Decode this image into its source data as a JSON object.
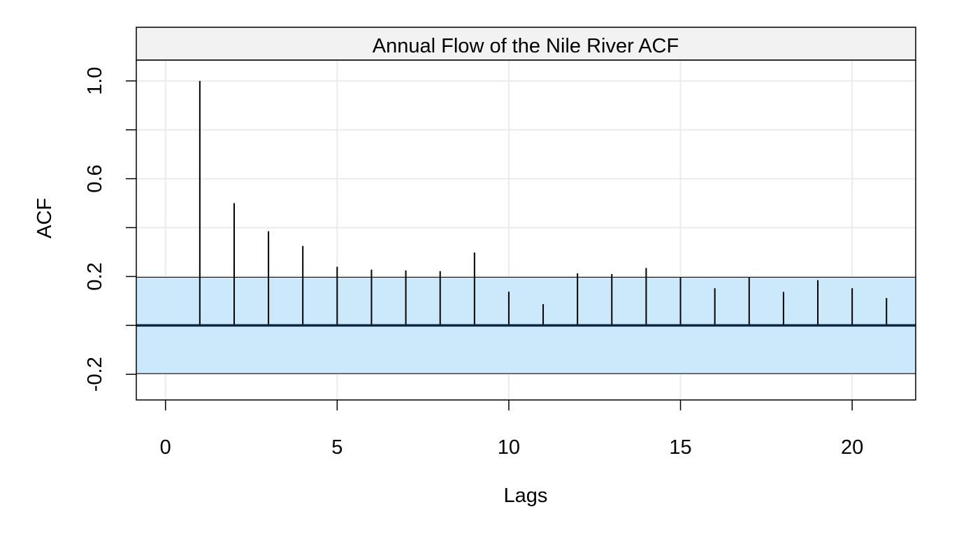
{
  "chart_data": {
    "type": "bar",
    "title": "Annual Flow of the Nile River ACF",
    "xlabel": "Lags",
    "ylabel": "ACF",
    "x": [
      1,
      2,
      3,
      4,
      5,
      6,
      7,
      8,
      9,
      10,
      11,
      12,
      13,
      14,
      15,
      16,
      17,
      18,
      19,
      20,
      21
    ],
    "values": [
      1.0,
      0.5,
      0.385,
      0.325,
      0.24,
      0.228,
      0.225,
      0.222,
      0.298,
      0.138,
      0.087,
      0.213,
      0.21,
      0.235,
      0.195,
      0.152,
      0.195,
      0.137,
      0.185,
      0.152,
      0.112
    ],
    "xlim": [
      -0.85,
      21.85
    ],
    "ylim": [
      -0.305,
      1.085
    ],
    "x_ticks": [
      0,
      5,
      10,
      15,
      20
    ],
    "x_tick_labels": [
      "0",
      "5",
      "10",
      "15",
      "20"
    ],
    "y_ticks": [
      -0.2,
      0.2,
      0.6,
      1.0
    ],
    "y_tick_labels": [
      "-0.2",
      "0.2",
      "0.6",
      "1.0"
    ],
    "y_minor_ticks": [
      0.0,
      0.4,
      0.8
    ],
    "confidence_band": [
      -0.197,
      0.197
    ],
    "grid": true,
    "colors": {
      "band": "#cce9fc",
      "zero_line": "#0b2740",
      "bars": "#000000",
      "grid": "#ebebeb",
      "strip": "#f2f2f2"
    }
  }
}
